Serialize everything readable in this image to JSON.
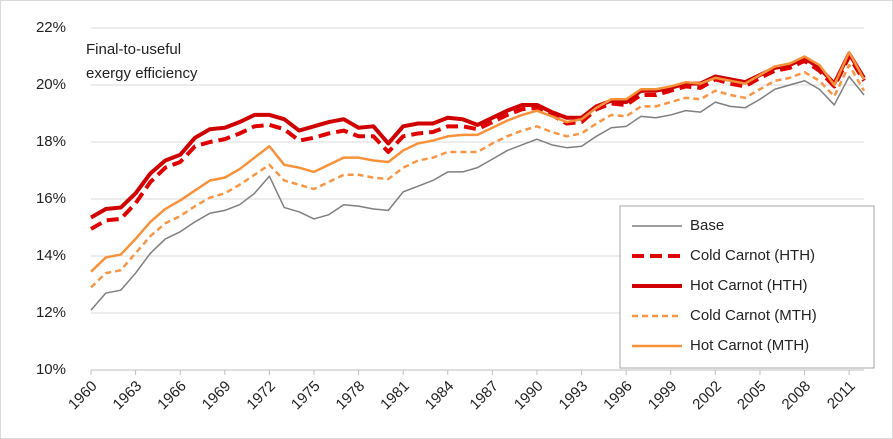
{
  "chart_data": {
    "type": "line",
    "annotation": [
      "Final-to-useful",
      "exergy efficiency"
    ],
    "x": [
      1960,
      1961,
      1962,
      1963,
      1964,
      1965,
      1966,
      1967,
      1968,
      1969,
      1970,
      1971,
      1972,
      1973,
      1974,
      1975,
      1976,
      1977,
      1978,
      1979,
      1980,
      1981,
      1982,
      1983,
      1984,
      1985,
      1986,
      1987,
      1988,
      1989,
      1990,
      1991,
      1992,
      1993,
      1994,
      1995,
      1996,
      1997,
      1998,
      1999,
      2000,
      2001,
      2002,
      2003,
      2004,
      2005,
      2006,
      2007,
      2008,
      2009,
      2010,
      2011,
      2012
    ],
    "xlim": [
      1960,
      2012
    ],
    "xticks": [
      1960,
      1963,
      1966,
      1969,
      1972,
      1975,
      1978,
      1981,
      1984,
      1987,
      1990,
      1993,
      1996,
      1999,
      2002,
      2005,
      2008,
      2011
    ],
    "ylim": [
      10,
      22
    ],
    "yticks": [
      {
        "value": 10,
        "label": "10%"
      },
      {
        "value": 12,
        "label": "12%"
      },
      {
        "value": 14,
        "label": "14%"
      },
      {
        "value": 16,
        "label": "16%"
      },
      {
        "value": 18,
        "label": "18%"
      },
      {
        "value": 20,
        "label": "20%"
      },
      {
        "value": 22,
        "label": "22%"
      }
    ],
    "grid": true,
    "legend": "bottom-right",
    "series": [
      {
        "name": "Base",
        "color": "#7f7f7f",
        "width": 1.5,
        "dash": "none",
        "values": [
          12.1,
          12.7,
          12.8,
          13.4,
          14.1,
          14.6,
          14.85,
          15.2,
          15.5,
          15.6,
          15.8,
          16.2,
          16.8,
          15.7,
          15.55,
          15.3,
          15.45,
          15.8,
          15.75,
          15.65,
          15.6,
          16.25,
          16.45,
          16.65,
          16.95,
          16.95,
          17.1,
          17.4,
          17.7,
          17.9,
          18.1,
          17.9,
          17.8,
          17.85,
          18.2,
          18.5,
          18.55,
          18.9,
          18.85,
          18.95,
          19.1,
          19.05,
          19.4,
          19.25,
          19.2,
          19.5,
          19.85,
          20.0,
          20.15,
          19.85,
          19.3,
          20.3,
          19.65
        ]
      },
      {
        "name": "Cold Carnot (HTH)",
        "color": "#e00000",
        "width": 4,
        "dash": "12 6",
        "values": [
          14.95,
          15.25,
          15.3,
          15.85,
          16.6,
          17.1,
          17.3,
          17.85,
          18.0,
          18.1,
          18.3,
          18.55,
          18.6,
          18.45,
          18.05,
          18.15,
          18.3,
          18.4,
          18.2,
          18.2,
          17.65,
          18.2,
          18.3,
          18.35,
          18.55,
          18.55,
          18.45,
          18.7,
          18.95,
          19.15,
          19.2,
          18.95,
          18.65,
          18.7,
          19.15,
          19.35,
          19.3,
          19.65,
          19.65,
          19.8,
          19.95,
          19.9,
          20.2,
          20.05,
          19.95,
          20.25,
          20.5,
          20.6,
          20.85,
          20.5,
          19.95,
          21.0,
          20.15
        ]
      },
      {
        "name": "Hot Carnot (HTH)",
        "color": "#d00000",
        "width": 4,
        "dash": "none",
        "values": [
          15.35,
          15.65,
          15.7,
          16.2,
          16.9,
          17.35,
          17.55,
          18.15,
          18.45,
          18.5,
          18.7,
          18.95,
          18.95,
          18.8,
          18.4,
          18.55,
          18.7,
          18.8,
          18.5,
          18.55,
          17.95,
          18.55,
          18.65,
          18.65,
          18.85,
          18.8,
          18.6,
          18.85,
          19.1,
          19.3,
          19.3,
          19.05,
          18.85,
          18.85,
          19.25,
          19.45,
          19.4,
          19.8,
          19.8,
          19.9,
          20.05,
          20.05,
          20.3,
          20.2,
          20.1,
          20.35,
          20.6,
          20.7,
          20.95,
          20.6,
          20.05,
          21.1,
          20.25
        ]
      },
      {
        "name": "Cold Carnot (MTH)",
        "color": "#f79646",
        "width": 2.5,
        "dash": "6 4",
        "values": [
          12.9,
          13.4,
          13.5,
          14.1,
          14.7,
          15.15,
          15.4,
          15.75,
          16.05,
          16.2,
          16.5,
          16.85,
          17.2,
          16.65,
          16.5,
          16.35,
          16.6,
          16.85,
          16.85,
          16.75,
          16.7,
          17.1,
          17.35,
          17.45,
          17.65,
          17.65,
          17.65,
          17.95,
          18.2,
          18.4,
          18.55,
          18.35,
          18.2,
          18.3,
          18.65,
          18.95,
          18.9,
          19.25,
          19.25,
          19.4,
          19.55,
          19.5,
          19.8,
          19.65,
          19.55,
          19.85,
          20.15,
          20.25,
          20.45,
          20.15,
          19.6,
          20.7,
          19.8
        ]
      },
      {
        "name": "Hot Carnot (MTH)",
        "color": "#f7923a",
        "width": 2.5,
        "dash": "none",
        "values": [
          13.45,
          13.95,
          14.05,
          14.6,
          15.2,
          15.65,
          15.95,
          16.3,
          16.65,
          16.75,
          17.05,
          17.45,
          17.85,
          17.2,
          17.1,
          16.95,
          17.2,
          17.45,
          17.45,
          17.35,
          17.3,
          17.7,
          17.95,
          18.05,
          18.2,
          18.25,
          18.25,
          18.5,
          18.75,
          18.95,
          19.1,
          18.9,
          18.7,
          18.8,
          19.2,
          19.5,
          19.5,
          19.85,
          19.85,
          19.95,
          20.1,
          20.05,
          20.25,
          20.15,
          20.05,
          20.35,
          20.65,
          20.75,
          21.0,
          20.7,
          20.0,
          21.15,
          20.2
        ]
      }
    ]
  }
}
